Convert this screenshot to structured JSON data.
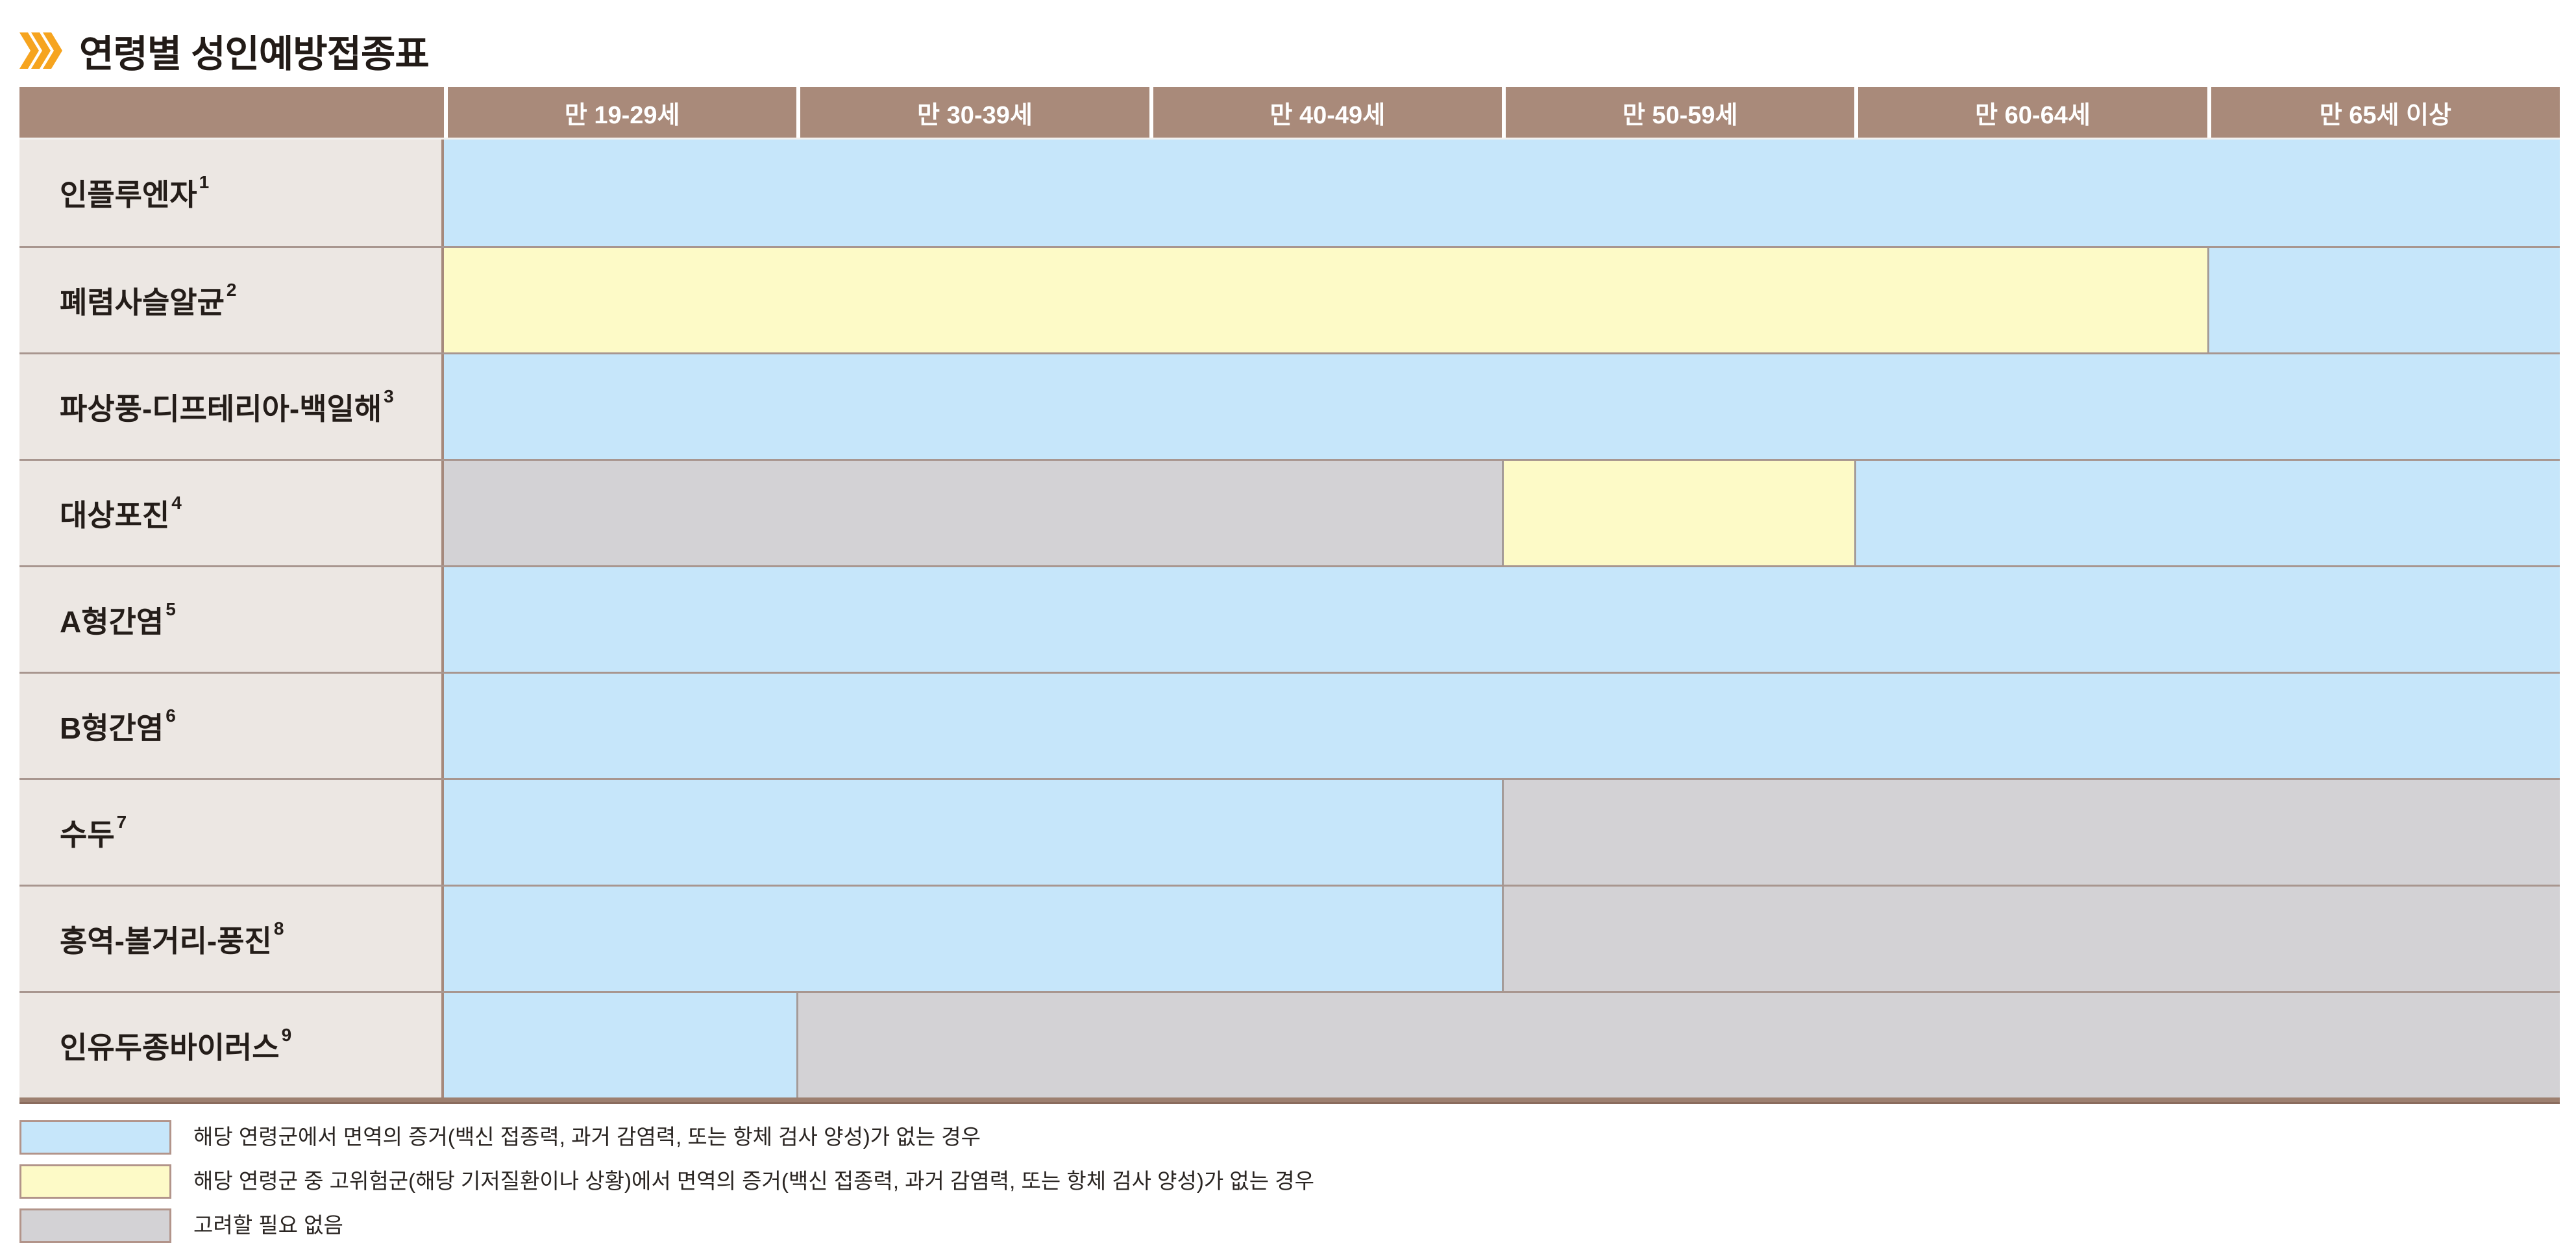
{
  "title": {
    "text": "연령별 성인예방접종표"
  },
  "colors": {
    "blue": "#c6e6fa",
    "yellow": "#fdfac7",
    "gray": "#d3d2d5",
    "header_bg": "#a98a7a",
    "header_text": "#ffffff",
    "label_bg": "#ece7e3",
    "accent": "#f6a41f",
    "bottom_bar": "#9d8070"
  },
  "table": {
    "columns": [
      "만 19-29세",
      "만 30-39세",
      "만 40-49세",
      "만 50-59세",
      "만 60-64세",
      "만 65세 이상"
    ],
    "rows": [
      {
        "label": "인플루엔자",
        "sup": "1",
        "segments": [
          {
            "color": "blue",
            "span": 6
          }
        ]
      },
      {
        "label": "폐렴사슬알균",
        "sup": "2",
        "segments": [
          {
            "color": "yellow",
            "span": 5
          },
          {
            "color": "blue",
            "span": 1
          }
        ]
      },
      {
        "label": "파상풍-디프테리아-백일해",
        "sup": "3",
        "segments": [
          {
            "color": "blue",
            "span": 6
          }
        ]
      },
      {
        "label": "대상포진",
        "sup": "4",
        "segments": [
          {
            "color": "gray",
            "span": 3
          },
          {
            "color": "yellow",
            "span": 1
          },
          {
            "color": "blue",
            "span": 2
          }
        ]
      },
      {
        "label": "A형간염",
        "sup": "5",
        "segments": [
          {
            "color": "blue",
            "span": 6
          }
        ]
      },
      {
        "label": "B형간염",
        "sup": "6",
        "segments": [
          {
            "color": "blue",
            "span": 6
          }
        ]
      },
      {
        "label": "수두",
        "sup": "7",
        "segments": [
          {
            "color": "blue",
            "span": 3
          },
          {
            "color": "gray",
            "span": 3
          }
        ]
      },
      {
        "label": "홍역-볼거리-풍진",
        "sup": "8",
        "segments": [
          {
            "color": "blue",
            "span": 3
          },
          {
            "color": "gray",
            "span": 3
          }
        ]
      },
      {
        "label": "인유두종바이러스",
        "sup": "9",
        "segments": [
          {
            "color": "blue",
            "span": 1
          },
          {
            "color": "gray",
            "span": 5
          }
        ]
      }
    ]
  },
  "legend": {
    "items": [
      {
        "color": "blue",
        "text": "해당 연령군에서 면역의 증거(백신 접종력, 과거 감염력, 또는 항체 검사 양성)가 없는 경우"
      },
      {
        "color": "yellow",
        "text": "해당 연령군 중 고위험군(해당 기저질환이나 상황)에서 면역의 증거(백신 접종력, 과거 감염력, 또는 항체 검사 양성)가 없는 경우"
      },
      {
        "color": "gray",
        "text": "고려할 필요 없음"
      }
    ]
  }
}
